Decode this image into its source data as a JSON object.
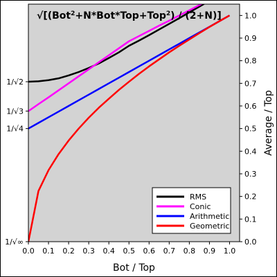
{
  "chart_data": {
    "type": "line",
    "title": {
      "parts": [
        {
          "text": "√[(Bot",
          "sup": false
        },
        {
          "text": "2",
          "sup": true
        },
        {
          "text": "+N*Bot*Top+Top",
          "sup": false
        },
        {
          "text": "2",
          "sup": true
        },
        {
          "text": ") / (2+N)]",
          "sup": false
        }
      ]
    },
    "xlabel": "Bot / Top",
    "ylabel": "Average / Top",
    "xlim": [
      0,
      1.05
    ],
    "ylim": [
      0,
      1.05
    ],
    "x_ticks": [
      0.0,
      0.1,
      0.2,
      0.3,
      0.4,
      0.5,
      0.6,
      0.7,
      0.8,
      0.9,
      1.0
    ],
    "x_tick_labels": [
      "0.0",
      "0.1",
      "0.2",
      "0.3",
      "0.4",
      "0.5",
      "0.6",
      "0.7",
      "0.8",
      "0.9",
      "1.0"
    ],
    "y_ticks_right": [
      0.0,
      0.1,
      0.2,
      0.3,
      0.4,
      0.5,
      0.6,
      0.7,
      0.8,
      0.9,
      1.0
    ],
    "y_tick_labels_right": [
      "0.0",
      "0.1",
      "0.2",
      "0.3",
      "0.4",
      "0.5",
      "0.6",
      "0.7",
      "0.8",
      "0.9",
      "1.0"
    ],
    "y_ticks_left": [
      {
        "value": 0.7071,
        "label": "1/√2"
      },
      {
        "value": 0.5774,
        "label": "1/√3"
      },
      {
        "value": 0.5,
        "label": "1/√4"
      },
      {
        "value": 0.0,
        "label": "1/√∞"
      }
    ],
    "grid": false,
    "background": "#d3d3d3",
    "legend_position": "bottom-right",
    "x": [
      0.0,
      0.05,
      0.1,
      0.15,
      0.2,
      0.25,
      0.3,
      0.35,
      0.4,
      0.45,
      0.5,
      0.55,
      0.6,
      0.65,
      0.7,
      0.75,
      0.8,
      0.85,
      0.9,
      0.95,
      1.0
    ],
    "series": [
      {
        "name": "RMS",
        "color": "#000000",
        "values": [
          0.707,
          0.709,
          0.714,
          0.722,
          0.735,
          0.75,
          0.768,
          0.788,
          0.812,
          0.837,
          0.866,
          0.889,
          0.913,
          0.938,
          0.963,
          0.988,
          1.014,
          1.039,
          1.065,
          1.091,
          1.118
        ]
      },
      {
        "name": "Conic",
        "color": "#ff00ff",
        "values": [
          0.577,
          0.608,
          0.638,
          0.669,
          0.7,
          0.731,
          0.762,
          0.793,
          0.824,
          0.855,
          0.886,
          0.909,
          0.932,
          0.955,
          0.977,
          1.0,
          1.023,
          1.046,
          1.069,
          1.092,
          1.115
        ]
      },
      {
        "name": "Arithmetic",
        "color": "#0000ff",
        "values": [
          0.5,
          0.525,
          0.55,
          0.575,
          0.6,
          0.625,
          0.65,
          0.675,
          0.7,
          0.725,
          0.75,
          0.775,
          0.8,
          0.825,
          0.85,
          0.875,
          0.9,
          0.925,
          0.95,
          0.975,
          1.0
        ]
      },
      {
        "name": "Geometric",
        "color": "#ff0000",
        "values": [
          0.0,
          0.224,
          0.316,
          0.387,
          0.447,
          0.5,
          0.548,
          0.592,
          0.632,
          0.671,
          0.707,
          0.742,
          0.775,
          0.806,
          0.837,
          0.866,
          0.894,
          0.922,
          0.949,
          0.975,
          1.0
        ]
      }
    ]
  }
}
